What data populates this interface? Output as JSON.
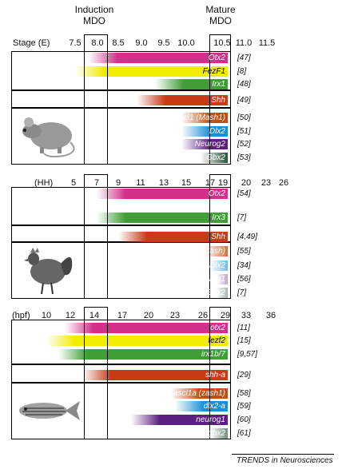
{
  "headers": {
    "induction": {
      "line1": "Induction",
      "line2": "MDO"
    },
    "mature": {
      "line1": "Mature",
      "line2": "MDO"
    }
  },
  "footer": "TRENDS in Neurosciences",
  "panels": [
    {
      "animal": "mouse",
      "axis_label": "Stage (E)",
      "ticks": [
        "7.5",
        "8.0",
        "8.5",
        "9.0",
        "9.5",
        "10.0",
        "10.5",
        "11.0",
        "11.5"
      ],
      "induction_tick": "8.5",
      "mature_tick": "10.5",
      "groups": [
        [
          {
            "gene": "Otx2",
            "start": "7.8",
            "color": "#d2308a",
            "ref": "[47]"
          },
          {
            "gene": "FezF1",
            "start": "7.5",
            "color": "#f2ec00",
            "text_dark": true,
            "ref": "[8]"
          },
          {
            "gene": "Irx1",
            "start": "9.3",
            "color": "#3f9e35",
            "ref": "[48]"
          }
        ],
        [
          {
            "gene": "Shh",
            "start": "8.9",
            "color": "#c93a17",
            "ref": "[49]"
          }
        ],
        [
          {
            "gene": "Ascl1 (Mash1)",
            "start": "9.9",
            "color": "#c44e0e",
            "ref": "[50]"
          },
          {
            "gene": "Dlx2",
            "start": "9.9",
            "color": "#1a8fd6",
            "ref": "[51]"
          },
          {
            "gene": "Neurog2",
            "start": "9.9",
            "color": "#5a1f80",
            "ref": "[52]"
          },
          {
            "gene": "Gbx2",
            "start": "10.2",
            "color": "#1a4a2a",
            "ref": "[53]"
          }
        ]
      ]
    },
    {
      "animal": "chicken",
      "axis_label": "(HH)",
      "ticks": [
        "5",
        "7",
        "9",
        "11",
        "13",
        "15",
        "17",
        "19",
        "20",
        "23",
        "26"
      ],
      "induction_tick": "9",
      "mature_tick": "19",
      "groups": [
        [
          {
            "gene": "Otx2",
            "start": "7",
            "color": "#d2308a",
            "ref": "[54]"
          },
          {
            "gene": "Irx3",
            "start": "7",
            "color": "#3f9e35",
            "ref": "[7]"
          }
        ],
        [
          {
            "gene": "Shh",
            "start": "9",
            "color": "#c93a17",
            "ref": "[4,49]"
          }
        ],
        [
          {
            "gene": "Ascl1 (Cash)",
            "start": "16.5",
            "color": "#c44e0e",
            "ref": "[55]"
          },
          {
            "gene": "Dlx2",
            "start": "17",
            "color": "#1a8fd6",
            "ref": "[34]"
          },
          {
            "gene": "Neurog1",
            "start": "18",
            "color": "#5a1f80",
            "ref": "[56]"
          },
          {
            "gene": "Gbx2",
            "start": "18",
            "color": "#1a4a2a",
            "ref": "[7]"
          }
        ]
      ]
    },
    {
      "animal": "zebrafish",
      "axis_label": "(hpf)",
      "ticks": [
        "10",
        "12",
        "14",
        "17",
        "20",
        "23",
        "26",
        "29",
        "33",
        "36"
      ],
      "induction_tick": "14",
      "mature_tick": "26",
      "groups": [
        [
          {
            "gene": "otx2",
            "start": "11.5",
            "color": "#d2308a",
            "ref": "[11]"
          },
          {
            "gene": "fezf2",
            "start": "10",
            "color": "#f2ec00",
            "text_dark": true,
            "ref": "[15]"
          },
          {
            "gene": "irx1b/7",
            "start": "11",
            "color": "#3f9e35",
            "ref": "[9,57]"
          }
        ],
        [
          {
            "gene": "shh-a",
            "start": "13",
            "color": "#c93a17",
            "ref": "[29]"
          }
        ],
        [
          {
            "gene": "ascl1a (zash1)",
            "start": "22.5",
            "color": "#c44e0e",
            "ref": "[58]"
          },
          {
            "gene": "dlx2-a",
            "start": "23",
            "color": "#1a8fd6",
            "ref": "[59]"
          },
          {
            "gene": "neurog1",
            "start": "18",
            "color": "#5a1f80",
            "ref": "[60]"
          },
          {
            "gene": "gbx2",
            "start": "27",
            "color": "#1a4a2a",
            "ref": "[61]"
          }
        ]
      ]
    }
  ]
}
